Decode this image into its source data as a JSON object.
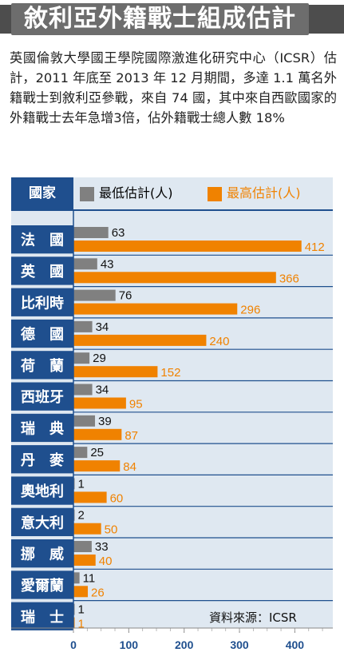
{
  "title": "敘利亞外籍戰士組成估計",
  "intro": "英國倫敦大學國王學院國際激進化研究中心（ICSR）估計，2011 年底至 2013 年 12 月期間，多達 1.1 萬名外籍戰士到敘利亞參戰，來自 74 國，其中來自西歐國家的外籍戰士去年急增3倍，佔外籍戰士總人數 18%",
  "source": "資料來源：ICSR",
  "colors": {
    "min": "#808080",
    "max": "#f08200",
    "label_bg": "#1f4f8e",
    "panel": "#dfe8f1"
  },
  "chart_data": {
    "type": "bar",
    "orientation": "horizontal",
    "category_header": "國家",
    "categories": [
      "法　國",
      "英　國",
      "比利時",
      "德　國",
      "荷　蘭",
      "西班牙",
      "瑞　典",
      "丹　麥",
      "奧地利",
      "意大利",
      "挪　威",
      "愛爾蘭",
      "瑞　士"
    ],
    "series": [
      {
        "name": "最低估計(人)",
        "color": "#808080",
        "values": [
          63,
          43,
          76,
          34,
          29,
          34,
          39,
          25,
          1,
          2,
          33,
          11,
          1
        ]
      },
      {
        "name": "最高估計(人)",
        "color": "#f08200",
        "values": [
          412,
          366,
          296,
          240,
          152,
          95,
          87,
          84,
          60,
          50,
          40,
          26,
          1
        ]
      }
    ],
    "xlim": [
      0,
      450
    ],
    "xticks": [
      0,
      100,
      200,
      300,
      400
    ],
    "legend": "top",
    "grid": false
  }
}
